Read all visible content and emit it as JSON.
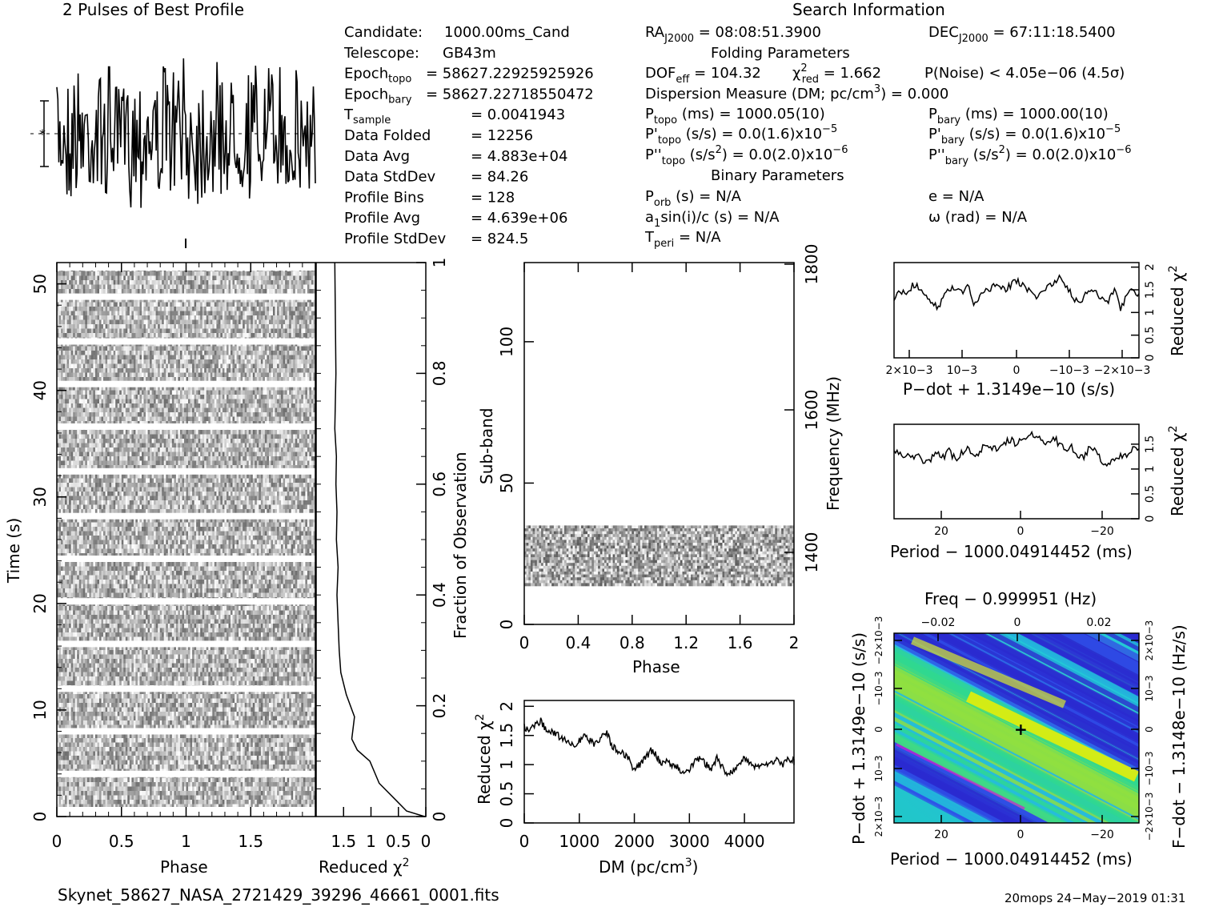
{
  "header": {
    "profile_title": "2 Pulses of Best Profile",
    "search_title": "Search Information",
    "folding_title": "Folding Parameters",
    "binary_title": "Binary Parameters"
  },
  "info": [
    {
      "label": "Candidate:  ",
      "value": "1000.00ms_Cand"
    },
    {
      "label": "Telescope:  ",
      "value": "GB43m"
    },
    {
      "label": "Epoch",
      "sub": "topo",
      "value": "= 58627.22925925926"
    },
    {
      "label": "Epoch",
      "sub": "bary",
      "value": "= 58627.22718550472"
    },
    {
      "label": "T",
      "sub": "sample",
      "value": "=  0.0041943"
    },
    {
      "label": "Data Folded",
      "value": "=  12256"
    },
    {
      "label": "Data Avg",
      "value": "=  4.883e+04"
    },
    {
      "label": "Data StdDev",
      "value": "=  84.26"
    },
    {
      "label": "Profile Bins",
      "value": "=  128"
    },
    {
      "label": "Profile Avg",
      "value": "=  4.639e+06"
    },
    {
      "label": "Profile StdDev",
      "value": "=  824.5"
    }
  ],
  "search": {
    "ra": {
      "label": "RA",
      "sub": "J2000",
      "value": " = 08:08:51.3900"
    },
    "dec": {
      "label": "DEC",
      "sub": "J2000",
      "value": " = 67:11:18.5400"
    },
    "dof": {
      "label": "DOF",
      "sub": "eff",
      "value": " = 104.32"
    },
    "chi": {
      "label": "χ",
      "sup": "2",
      "sub": "red",
      "value": " = 1.662"
    },
    "pnoise": "P(Noise) < 4.05e−06  (4.5σ)",
    "dm": {
      "text": "Dispersion Measure (DM; pc/cm",
      "sup": "3",
      "value": ") = 0.000"
    },
    "ptopo": {
      "label": "P",
      "sub": "topo",
      "value": " (ms) =  1000.05(10)"
    },
    "pbary": {
      "label": "P",
      "sub": "bary",
      "value": " (ms) =  1000.00(10)"
    },
    "pdtopo": {
      "label": "P'",
      "sub": "topo",
      "value": " (s/s) = 0.0(1.6)x10",
      "sup": "−5"
    },
    "pdbary": {
      "label": "P'",
      "sub": "bary",
      "value": " (s/s) = 0.0(1.6)x10",
      "sup": "−5"
    },
    "pddtopo": {
      "label": "P''",
      "sub": "topo",
      "value": " (s/s",
      "sup1": "2",
      "value2": ") = 0.0(2.0)x10",
      "sup": "−6"
    },
    "pddbary": {
      "label": "P''",
      "sub": "bary",
      "value": " (s/s",
      "sup1": "2",
      "value2": ") = 0.0(2.0)x10",
      "sup": "−6"
    },
    "porb": {
      "label": "P",
      "sub": "orb",
      "value": " (s) = N/A"
    },
    "ecc": "e = N/A",
    "a1": {
      "label": "a",
      "sub": "1",
      "value": "sin(i)/c (s) = N/A"
    },
    "omega": "ω (rad) = N/A",
    "tperi": {
      "label": "T",
      "sub": "peri",
      "value": " = N/A"
    }
  },
  "footer": {
    "filename": "Skynet_58627_NASA_2721429_39296_46661_0001.fits",
    "stamp": "20mops 24−May−2019 01:31"
  },
  "colors": {
    "ink": "#000000",
    "bg": "#ffffff",
    "map_low": "#2b2bd0",
    "map_mid": "#20c8d8",
    "map_hi": "#f0f000"
  },
  "chart_data": [
    {
      "type": "line",
      "title": "2 Pulses of Best Profile",
      "xlabel": "",
      "ylabel": "",
      "xlim": [
        0,
        2
      ],
      "note_series": "noise-like profile, 2 pulses, 128 bins each"
    },
    {
      "type": "heatmap",
      "name": "time_phase",
      "xlabel": "Phase",
      "ylabel": "Time (s)",
      "xlim": [
        0,
        2
      ],
      "ylim": [
        0,
        52
      ],
      "x_ticks": [
        "0",
        "0.5",
        "1",
        "1.5"
      ],
      "y_ticks": [
        "0",
        "10",
        "20",
        "30",
        "40",
        "50"
      ],
      "gap_times": [
        4.0,
        8.0,
        12.0,
        16.2,
        20.2,
        24.2,
        28.2,
        32.4,
        36.6,
        40.6,
        44.6,
        48.8
      ]
    },
    {
      "type": "line",
      "name": "time_chi2",
      "xlabel": "Reduced χ2",
      "ylabel": "Fraction of Observation",
      "xlim": [
        2,
        0
      ],
      "ylim": [
        0,
        1
      ],
      "x_ticks": [
        "1.5",
        "1",
        "0.5",
        "0"
      ],
      "y_ticks": [
        "0",
        "0.2",
        "0.4",
        "0.6",
        "0.8",
        "1"
      ],
      "x": [
        0.02,
        0.35,
        0.55,
        0.85,
        1.02,
        1.25,
        1.35,
        1.3,
        1.45,
        1.55,
        1.58,
        1.6,
        1.62,
        1.6,
        1.63,
        1.62,
        1.64,
        1.63,
        1.66,
        1.64,
        1.65,
        1.66
      ],
      "y": [
        0.0,
        0.01,
        0.03,
        0.06,
        0.1,
        0.12,
        0.14,
        0.18,
        0.22,
        0.26,
        0.3,
        0.35,
        0.4,
        0.45,
        0.5,
        0.55,
        0.6,
        0.65,
        0.7,
        0.8,
        0.9,
        1.0
      ]
    },
    {
      "type": "heatmap",
      "name": "subband_phase",
      "xlabel": "Phase",
      "ylabel": "Sub-band",
      "y2label": "Frequency (MHz)",
      "xlim": [
        0,
        2
      ],
      "ylim": [
        0,
        128
      ],
      "x_ticks": [
        "0",
        "0.4",
        "0.8",
        "1.2",
        "1.6",
        "2"
      ],
      "y_ticks": [
        "0",
        "50",
        "100"
      ],
      "y2_ticks": [
        "1400",
        "1600",
        "1800"
      ],
      "filled_subbands": [
        14,
        35
      ]
    },
    {
      "type": "line",
      "name": "dm_chi2",
      "xlabel": "DM (pc/cm3)",
      "ylabel": "Reduced χ2",
      "xlim": [
        0,
        4900
      ],
      "ylim": [
        0,
        2.1
      ],
      "x_ticks": [
        "0",
        "1000",
        "2000",
        "3000",
        "4000"
      ],
      "y_ticks": [
        "0",
        "0.5",
        "1",
        "1.5",
        "2"
      ],
      "x": [
        0,
        100,
        200,
        300,
        400,
        500,
        600,
        700,
        800,
        900,
        1000,
        1100,
        1200,
        1300,
        1400,
        1500,
        1600,
        1700,
        1800,
        1900,
        2000,
        2100,
        2200,
        2300,
        2400,
        2500,
        2600,
        2700,
        2800,
        2900,
        3000,
        3100,
        3200,
        3300,
        3400,
        3500,
        3600,
        3700,
        3800,
        3900,
        4000,
        4100,
        4200,
        4300,
        4400,
        4500,
        4600,
        4700,
        4800,
        4900
      ],
      "y": [
        1.65,
        1.6,
        1.7,
        1.75,
        1.6,
        1.55,
        1.5,
        1.45,
        1.4,
        1.35,
        1.4,
        1.5,
        1.4,
        1.35,
        1.45,
        1.55,
        1.3,
        1.25,
        1.2,
        1.1,
        0.9,
        1.0,
        1.1,
        1.25,
        1.15,
        1.0,
        1.05,
        1.0,
        0.95,
        0.85,
        0.9,
        1.05,
        1.1,
        1.0,
        0.95,
        1.1,
        0.95,
        0.85,
        0.9,
        1.0,
        1.1,
        1.05,
        0.95,
        1.0,
        1.0,
        1.05,
        1.1,
        1.0,
        1.1,
        1.05
      ]
    },
    {
      "type": "line",
      "name": "pdot_chi2",
      "xlabel": "P−dot + 1.3149e−10 (s/s)",
      "ylabel": "Reduced χ2",
      "x_ticks": [
        "2×10−3",
        "10−3",
        "0",
        "−10−3",
        "−2×10−3"
      ],
      "y_ticks": [
        "0",
        "0.5",
        "1",
        "1.5",
        "2"
      ],
      "ylim": [
        0,
        2.1
      ],
      "y": [
        1.3,
        1.45,
        1.4,
        1.6,
        1.55,
        1.35,
        1.25,
        1.1,
        1.3,
        1.5,
        1.55,
        1.45,
        1.6,
        1.2,
        1.35,
        1.5,
        1.55,
        1.65,
        1.5,
        1.6,
        1.7,
        1.6,
        1.5,
        1.35,
        1.4,
        1.55,
        1.6,
        1.85,
        1.6,
        1.4,
        1.2,
        1.35,
        1.5,
        1.45,
        1.3,
        1.25,
        1.5,
        1.1,
        1.35,
        1.5,
        1.4
      ]
    },
    {
      "type": "line",
      "name": "period_chi2",
      "xlabel": "Period − 1000.04914452 (ms)",
      "ylabel": "Reduced χ2",
      "x_ticks": [
        "20",
        "0",
        "−20"
      ],
      "y_ticks": [
        "0",
        "0.5",
        "1",
        "1.5"
      ],
      "ylim": [
        0,
        1.9
      ],
      "y": [
        1.35,
        1.3,
        1.25,
        1.2,
        1.3,
        1.1,
        1.2,
        1.3,
        1.25,
        1.35,
        1.2,
        1.3,
        1.4,
        1.25,
        1.35,
        1.5,
        1.45,
        1.35,
        1.55,
        1.6,
        1.5,
        1.6,
        1.65,
        1.7,
        1.6,
        1.55,
        1.65,
        1.5,
        1.4,
        1.45,
        1.3,
        1.2,
        1.45,
        1.35,
        1.15,
        1.1,
        1.2,
        1.25,
        1.3,
        1.4,
        1.45
      ]
    },
    {
      "type": "heatmap",
      "name": "period_pdot",
      "xlabel": "Period − 1000.04914452 (ms)",
      "ylabel": "P−dot + 1.3149e−10 (s/s)",
      "x2label": "Freq − 0.999951 (Hz)",
      "y2label": "F−dot − 1.3148e−10 (Hz/s)",
      "x_ticks": [
        "20",
        "0",
        "−20"
      ],
      "x2_ticks": [
        "−0.02",
        "0",
        "0.02"
      ],
      "y_ticks": [
        "2×10−3",
        "10−3",
        "0",
        "−10−3",
        "−2×10−3"
      ],
      "y2_ticks": [
        "−2×10−3",
        "−10−3",
        "0",
        "10−3",
        "2×10−3"
      ]
    }
  ]
}
